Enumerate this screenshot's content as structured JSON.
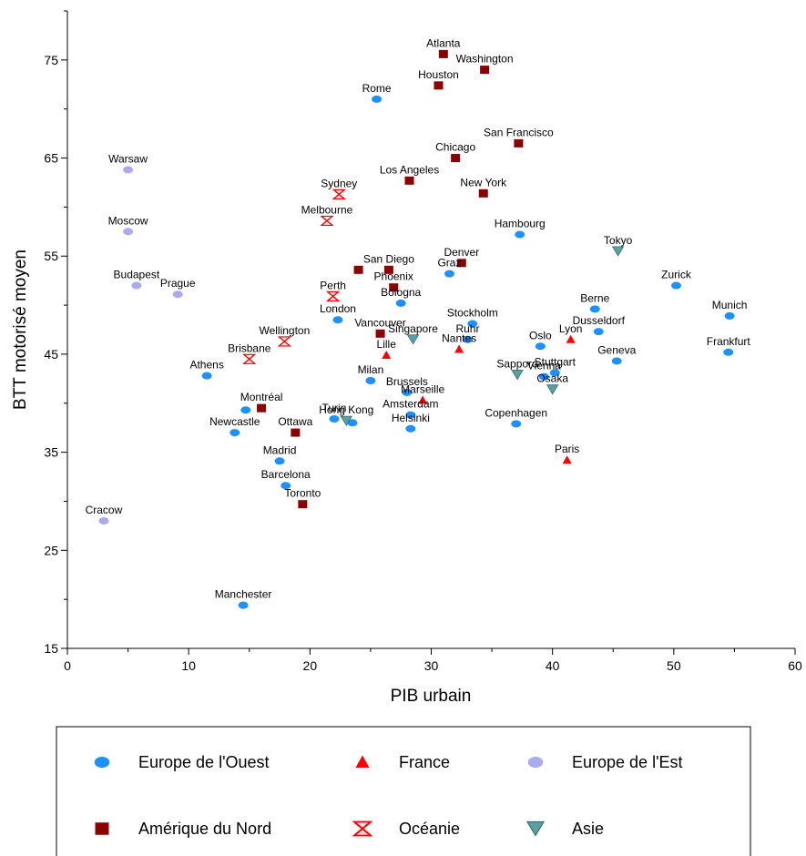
{
  "chart_data": {
    "type": "scatter",
    "title": "",
    "xlabel": "PIB urbain",
    "ylabel": "BTT motorisé moyen",
    "xlim": [
      0,
      60
    ],
    "ylim": [
      15,
      80
    ],
    "xticks": [
      0,
      10,
      20,
      30,
      40,
      50,
      60
    ],
    "yticks": [
      15,
      25,
      35,
      45,
      55,
      65,
      75
    ],
    "grid": false,
    "legend_position": "bottom",
    "series": [
      {
        "name": "Europe de l'Ouest",
        "marker": "ellipse",
        "color": "#1E90FF",
        "points": [
          {
            "label": "Rome",
            "x": 25.5,
            "y": 71.0
          },
          {
            "label": "Hambourg",
            "x": 37.3,
            "y": 57.2
          },
          {
            "label": "Graz",
            "x": 31.5,
            "y": 53.2
          },
          {
            "label": "Zurick",
            "x": 50.2,
            "y": 52.0
          },
          {
            "label": "Bologna",
            "x": 27.5,
            "y": 50.2
          },
          {
            "label": "Berne",
            "x": 43.5,
            "y": 49.6
          },
          {
            "label": "Munich",
            "x": 54.6,
            "y": 48.9
          },
          {
            "label": "London",
            "x": 22.3,
            "y": 48.5
          },
          {
            "label": "Stockholm",
            "x": 33.4,
            "y": 48.1
          },
          {
            "label": "Dusseldorf",
            "x": 43.8,
            "y": 47.3
          },
          {
            "label": "Ruhr",
            "x": 33.0,
            "y": 46.5
          },
          {
            "label": "Oslo",
            "x": 39.0,
            "y": 45.8
          },
          {
            "label": "Frankfurt",
            "x": 54.5,
            "y": 45.2
          },
          {
            "label": "Geneva",
            "x": 45.3,
            "y": 44.3
          },
          {
            "label": "Stuttgart",
            "x": 40.2,
            "y": 43.1
          },
          {
            "label": "Vienna",
            "x": 39.3,
            "y": 42.7
          },
          {
            "label": "Athens",
            "x": 11.5,
            "y": 42.8
          },
          {
            "label": "Milan",
            "x": 25.0,
            "y": 42.3
          },
          {
            "label": "Brussels",
            "x": 28.0,
            "y": 41.1
          },
          {
            "label": "Amsterdam",
            "x": 28.3,
            "y": 38.8
          },
          {
            "label": "Turin",
            "x": 22.0,
            "y": 38.4
          },
          {
            "label": "Helsinki",
            "x": 28.3,
            "y": 37.4
          },
          {
            "label": "Copenhagen",
            "x": 37.0,
            "y": 37.9
          },
          {
            "label": "Newcastle",
            "x": 13.8,
            "y": 37.0
          },
          {
            "label": "Madrid",
            "x": 17.5,
            "y": 34.1
          },
          {
            "label": "Barcelona",
            "x": 18.0,
            "y": 31.6
          },
          {
            "label": "Manchester",
            "x": 14.5,
            "y": 19.4
          },
          {
            "label": "",
            "x": 14.7,
            "y": 39.3
          },
          {
            "label": "",
            "x": 23.5,
            "y": 38.0
          }
        ]
      },
      {
        "name": "France",
        "marker": "triangle-up",
        "color": "#FF0000",
        "points": [
          {
            "label": "Lyon",
            "x": 41.5,
            "y": 46.5
          },
          {
            "label": "Nantes",
            "x": 32.3,
            "y": 45.5
          },
          {
            "label": "Lille",
            "x": 26.3,
            "y": 44.9
          },
          {
            "label": "Marseille",
            "x": 29.3,
            "y": 40.3
          },
          {
            "label": "Paris",
            "x": 41.2,
            "y": 34.2
          }
        ]
      },
      {
        "name": "Europe de l'Est",
        "marker": "ellipse",
        "color": "#AAAAEE",
        "points": [
          {
            "label": "Warsaw",
            "x": 5.0,
            "y": 63.8
          },
          {
            "label": "Moscow",
            "x": 5.0,
            "y": 57.5
          },
          {
            "label": "Budapest",
            "x": 5.7,
            "y": 52.0
          },
          {
            "label": "Prague",
            "x": 9.1,
            "y": 51.1
          },
          {
            "label": "Cracow",
            "x": 3.0,
            "y": 28.0
          }
        ]
      },
      {
        "name": "Amérique du Nord",
        "marker": "square",
        "color": "#8B0000",
        "points": [
          {
            "label": "Atlanta",
            "x": 31.0,
            "y": 75.6
          },
          {
            "label": "Washington",
            "x": 34.4,
            "y": 74.0
          },
          {
            "label": "Houston",
            "x": 30.6,
            "y": 72.4
          },
          {
            "label": "San Francisco",
            "x": 37.2,
            "y": 66.5
          },
          {
            "label": "Chicago",
            "x": 32.0,
            "y": 65.0
          },
          {
            "label": "Los Angeles",
            "x": 28.2,
            "y": 62.7
          },
          {
            "label": "New York",
            "x": 34.3,
            "y": 61.4
          },
          {
            "label": "Denver",
            "x": 32.5,
            "y": 54.3
          },
          {
            "label": "San Diego",
            "x": 26.5,
            "y": 53.6
          },
          {
            "label": "",
            "x": 24.0,
            "y": 53.6
          },
          {
            "label": "Phoenix",
            "x": 26.9,
            "y": 51.8
          },
          {
            "label": "Vancouver",
            "x": 25.8,
            "y": 47.1
          },
          {
            "label": "Montréal",
            "x": 16.0,
            "y": 39.5
          },
          {
            "label": "Ottawa",
            "x": 18.8,
            "y": 37.0
          },
          {
            "label": "Toronto",
            "x": 19.4,
            "y": 29.7
          }
        ]
      },
      {
        "name": "Océanie",
        "marker": "hourglass",
        "color": "#FF0000",
        "points": [
          {
            "label": "Sydney",
            "x": 22.4,
            "y": 61.3
          },
          {
            "label": "Melbourne",
            "x": 21.4,
            "y": 58.6
          },
          {
            "label": "Perth",
            "x": 21.9,
            "y": 50.9
          },
          {
            "label": "Wellington",
            "x": 17.9,
            "y": 46.3
          },
          {
            "label": "Brisbane",
            "x": 15.0,
            "y": 44.5
          }
        ]
      },
      {
        "name": "Asie",
        "marker": "triangle-down",
        "color": "#5F9EA0",
        "points": [
          {
            "label": "Tokyo",
            "x": 45.4,
            "y": 55.5
          },
          {
            "label": "Singapore",
            "x": 28.5,
            "y": 46.5
          },
          {
            "label": "Sapporo",
            "x": 37.1,
            "y": 42.9
          },
          {
            "label": "Osaka",
            "x": 40.0,
            "y": 41.4
          },
          {
            "label": "Hong Kong",
            "x": 23.0,
            "y": 38.2
          }
        ]
      }
    ]
  }
}
